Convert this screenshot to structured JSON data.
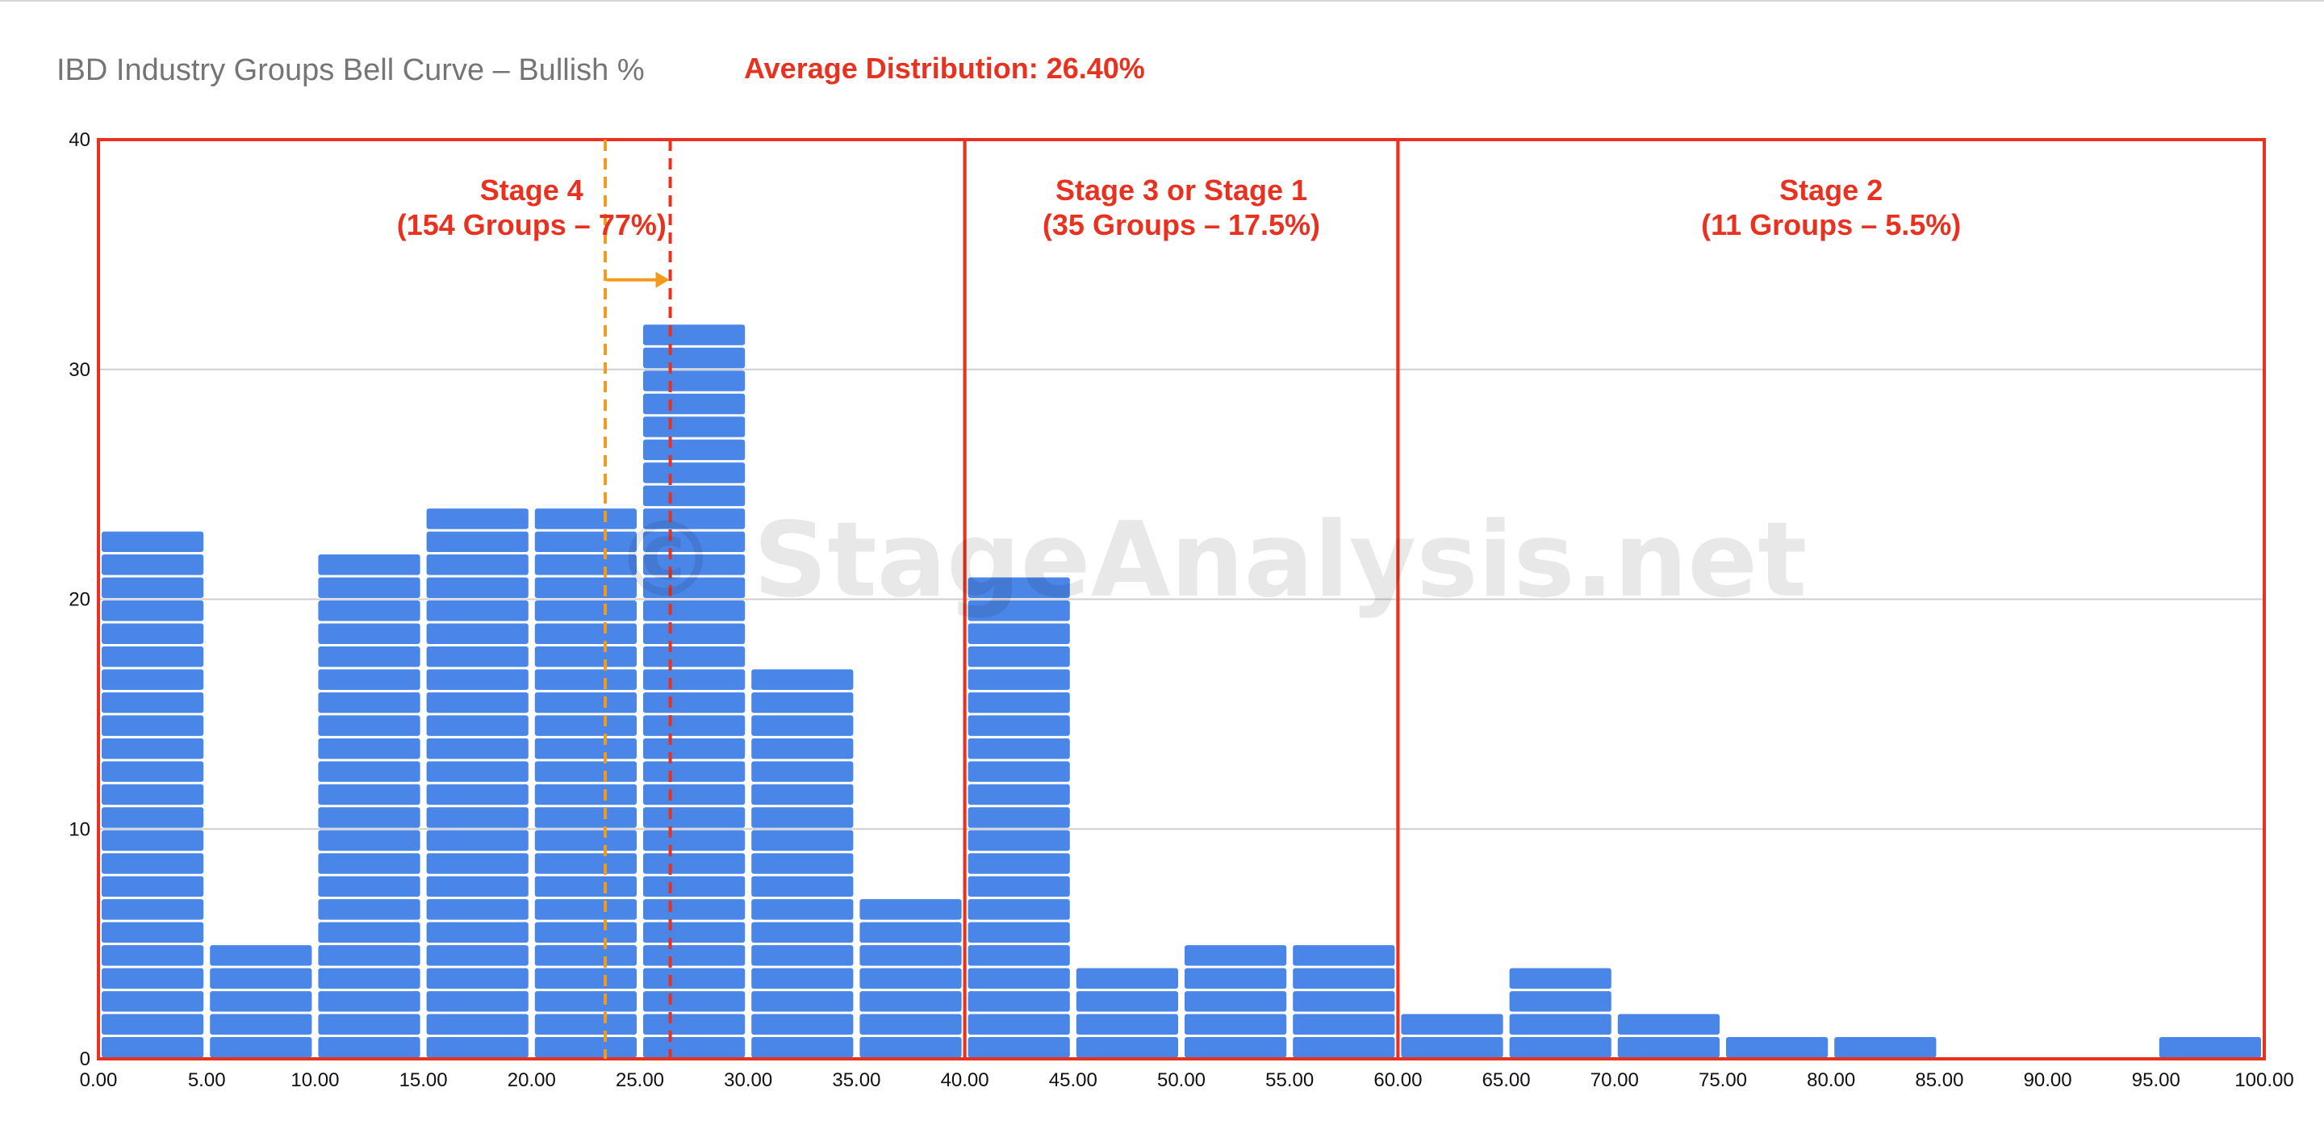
{
  "chart_data": {
    "type": "bar",
    "title": "IBD Industry Groups Bell Curve – Bullish %",
    "subtitle": "Average Distribution: 26.40%",
    "xlabel": "",
    "ylabel": "",
    "xlim": [
      0,
      100
    ],
    "ylim": [
      0,
      40
    ],
    "x_ticks": [
      "0.00",
      "5.00",
      "10.00",
      "15.00",
      "20.00",
      "25.00",
      "30.00",
      "35.00",
      "40.00",
      "45.00",
      "50.00",
      "55.00",
      "60.00",
      "65.00",
      "70.00",
      "75.00",
      "80.00",
      "85.00",
      "90.00",
      "95.00",
      "100.00"
    ],
    "y_ticks": [
      "0",
      "10",
      "20",
      "30",
      "40"
    ],
    "bin_width": 5,
    "bins_start": [
      0,
      5,
      10,
      15,
      20,
      25,
      30,
      35,
      40,
      45,
      50,
      55,
      60,
      65,
      70,
      75,
      80,
      85,
      90,
      95
    ],
    "values": [
      23,
      5,
      22,
      24,
      24,
      32,
      17,
      7,
      21,
      4,
      5,
      5,
      2,
      4,
      2,
      1,
      1,
      0,
      0,
      1
    ],
    "grid": true,
    "average_line": 26.4,
    "previous_average_line": 23.4,
    "zones": [
      {
        "x0": 0,
        "x1": 40,
        "line1": "Stage 4",
        "line2": "(154 Groups – 77%)"
      },
      {
        "x0": 40,
        "x1": 60,
        "line1": "Stage 3 or Stage 1",
        "line2": "(35 Groups – 17.5%)"
      },
      {
        "x0": 60,
        "x1": 100,
        "line1": "Stage 2",
        "line2": "(11 Groups – 5.5%)"
      }
    ],
    "colors": {
      "bar": "#4a86e8",
      "zone": "#e8321f",
      "average": "#e8321f",
      "previous_average": "#f39a1c",
      "grid": "#cfcfcf"
    }
  },
  "watermark": "© StageAnalysis.net"
}
